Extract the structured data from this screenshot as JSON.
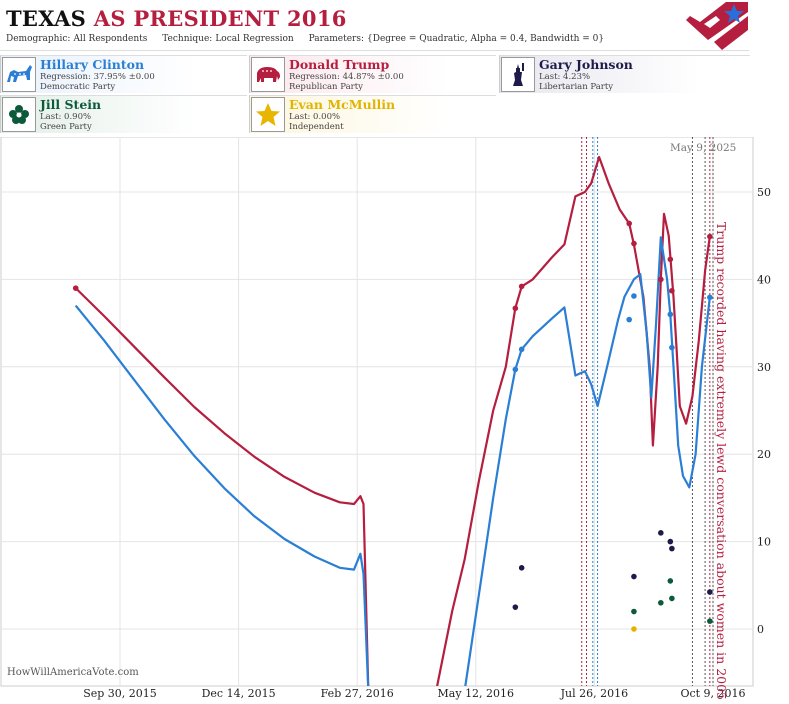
{
  "header": {
    "title_state": "TEXAS",
    "title_rest": "AS PRESIDENT 2016",
    "demographic_label": "Demographic:",
    "demographic_value": "All Respondents",
    "technique_label": "Technique:",
    "technique_value": "Local Regression",
    "parameters_label": "Parameters:",
    "parameters_value": "{Degree = Quadratic, Alpha = 0.4, Bandwidth = 0}"
  },
  "candidates": [
    {
      "name": "Hillary Clinton",
      "stat": "Regression: 37.95% ±0.00",
      "party": "Democratic Party",
      "color": "#2a7fd4",
      "icon": "donkey-icon"
    },
    {
      "name": "Donald Trump",
      "stat": "Regression: 44.87% ±0.00",
      "party": "Republican Party",
      "color": "#b51e3f",
      "icon": "elephant-icon"
    },
    {
      "name": "Gary Johnson",
      "stat": "Last: 4.23%",
      "party": "Libertarian Party",
      "color": "#1e1b4a",
      "icon": "statue-of-liberty-icon"
    },
    {
      "name": "Jill Stein",
      "stat": "Last: 0.90%",
      "party": "Green Party",
      "color": "#0c5a3a",
      "icon": "flower-icon"
    },
    {
      "name": "Evan McMullin",
      "stat": "Last: 0.00%",
      "party": "Independent",
      "color": "#e2b400",
      "icon": "star-icon"
    }
  ],
  "watermark": "HowWillAmericaVote.com",
  "date_stamp": "May 9, 2025",
  "chart_data": {
    "type": "line",
    "x_tick_labels": [
      "Sep 30, 2015",
      "Dec 14, 2015",
      "Feb 27, 2016",
      "May 12, 2016",
      "Jul 26, 2016",
      "Oct 9, 2016"
    ],
    "y_ticks": [
      0,
      10,
      20,
      30,
      40,
      50
    ],
    "ylim": [
      -6.5,
      56
    ],
    "grid": true,
    "annotation": "Trump recorded having extremely lewd conversation about women in 2005",
    "series": [
      {
        "name": "Donald Trump",
        "color": "#b51e3f",
        "curve": [
          [
            "2015-09-02",
            39
          ],
          [
            "2015-09-20",
            35.8
          ],
          [
            "2015-10-09",
            32.3
          ],
          [
            "2015-10-28",
            28.8
          ],
          [
            "2015-11-16",
            25.4
          ],
          [
            "2015-12-05",
            22.4
          ],
          [
            "2015-12-24",
            19.7
          ],
          [
            "2016-01-12",
            17.4
          ],
          [
            "2016-01-31",
            15.6
          ],
          [
            "2016-02-16",
            14.5
          ],
          [
            "2016-02-25",
            14.3
          ],
          [
            "2016-02-29",
            15.2
          ],
          [
            "2016-03-02",
            14.3
          ],
          [
            "2016-03-05",
            -7
          ],
          [
            "2016-04-17",
            -7
          ],
          [
            "2016-04-27",
            2
          ],
          [
            "2016-05-05",
            8
          ],
          [
            "2016-05-14",
            17
          ],
          [
            "2016-05-23",
            25
          ],
          [
            "2016-05-31",
            30
          ],
          [
            "2016-06-06",
            36.7
          ],
          [
            "2016-06-10",
            39.2
          ],
          [
            "2016-06-17",
            40
          ],
          [
            "2016-06-29",
            42.5
          ],
          [
            "2016-07-07",
            44
          ],
          [
            "2016-07-14",
            49.5
          ],
          [
            "2016-07-20",
            50
          ],
          [
            "2016-07-24",
            51
          ],
          [
            "2016-07-29",
            54
          ],
          [
            "2016-08-04",
            51
          ],
          [
            "2016-08-11",
            48
          ],
          [
            "2016-08-17",
            46.4
          ],
          [
            "2016-08-20",
            44
          ],
          [
            "2016-08-26",
            38
          ],
          [
            "2016-08-30",
            30
          ],
          [
            "2016-09-01",
            21
          ],
          [
            "2016-09-04",
            30
          ],
          [
            "2016-09-06",
            40
          ],
          [
            "2016-09-08",
            47.5
          ],
          [
            "2016-09-11",
            45
          ],
          [
            "2016-09-14",
            38
          ],
          [
            "2016-09-16",
            32
          ],
          [
            "2016-09-18",
            25.5
          ],
          [
            "2016-09-22",
            23.5
          ],
          [
            "2016-09-26",
            26.6
          ],
          [
            "2016-09-30",
            33
          ],
          [
            "2016-10-04",
            41
          ],
          [
            "2016-10-07",
            44.9
          ]
        ],
        "points": [
          [
            "2015-09-02",
            39.0
          ],
          [
            "2016-06-06",
            36.7
          ],
          [
            "2016-06-10",
            39.2
          ],
          [
            "2016-08-17",
            46.4
          ],
          [
            "2016-08-20",
            44.1
          ],
          [
            "2016-09-06",
            40.0
          ],
          [
            "2016-09-12",
            42.3
          ],
          [
            "2016-09-13",
            38.7
          ],
          [
            "2016-10-07",
            44.9
          ]
        ]
      },
      {
        "name": "Hillary Clinton",
        "color": "#2a7fd4",
        "curve": [
          [
            "2015-09-02",
            37
          ],
          [
            "2015-09-20",
            33
          ],
          [
            "2015-10-09",
            28.5
          ],
          [
            "2015-10-28",
            24
          ],
          [
            "2015-11-16",
            19.8
          ],
          [
            "2015-12-05",
            16.1
          ],
          [
            "2015-12-24",
            12.9
          ],
          [
            "2016-01-12",
            10.3
          ],
          [
            "2016-01-31",
            8.3
          ],
          [
            "2016-02-16",
            7
          ],
          [
            "2016-02-25",
            6.8
          ],
          [
            "2016-02-29",
            8.6
          ],
          [
            "2016-03-02",
            6.3
          ],
          [
            "2016-03-05",
            -7
          ],
          [
            "2016-05-05",
            -7
          ],
          [
            "2016-05-14",
            4
          ],
          [
            "2016-05-23",
            15
          ],
          [
            "2016-05-31",
            24
          ],
          [
            "2016-06-06",
            29.7
          ],
          [
            "2016-06-10",
            32
          ],
          [
            "2016-06-17",
            33.5
          ],
          [
            "2016-06-29",
            35.5
          ],
          [
            "2016-07-07",
            36.8
          ],
          [
            "2016-07-14",
            29
          ],
          [
            "2016-07-20",
            29.5
          ],
          [
            "2016-07-24",
            28
          ],
          [
            "2016-07-28",
            25.5
          ],
          [
            "2016-08-03",
            30
          ],
          [
            "2016-08-10",
            35.4
          ],
          [
            "2016-08-14",
            38
          ],
          [
            "2016-08-20",
            40
          ],
          [
            "2016-08-24",
            40.6
          ],
          [
            "2016-08-28",
            34
          ],
          [
            "2016-08-31",
            26.5
          ],
          [
            "2016-09-03",
            35
          ],
          [
            "2016-09-06",
            44.8
          ],
          [
            "2016-09-10",
            40
          ],
          [
            "2016-09-12",
            36
          ],
          [
            "2016-09-14",
            30
          ],
          [
            "2016-09-17",
            21
          ],
          [
            "2016-09-20",
            17.5
          ],
          [
            "2016-09-24",
            16.2
          ],
          [
            "2016-09-28",
            20
          ],
          [
            "2016-10-02",
            30
          ],
          [
            "2016-10-07",
            37.95
          ]
        ],
        "points": [
          [
            "2016-06-06",
            29.7
          ],
          [
            "2016-06-10",
            32.0
          ],
          [
            "2016-08-17",
            35.4
          ],
          [
            "2016-08-20",
            38.1
          ],
          [
            "2016-09-12",
            36.0
          ],
          [
            "2016-09-13",
            32.2
          ],
          [
            "2016-10-07",
            37.95
          ]
        ]
      },
      {
        "name": "Gary Johnson",
        "color": "#1e1b4a",
        "points": [
          [
            "2016-06-06",
            2.5
          ],
          [
            "2016-06-10",
            7.0
          ],
          [
            "2016-08-20",
            6.0
          ],
          [
            "2016-09-06",
            11.0
          ],
          [
            "2016-09-12",
            10.0
          ],
          [
            "2016-09-13",
            9.2
          ],
          [
            "2016-10-07",
            4.23
          ]
        ]
      },
      {
        "name": "Jill Stein",
        "color": "#0c5a3a",
        "points": [
          [
            "2016-08-20",
            2.0
          ],
          [
            "2016-09-06",
            3.0
          ],
          [
            "2016-09-12",
            5.5
          ],
          [
            "2016-09-13",
            3.5
          ],
          [
            "2016-10-07",
            0.9
          ]
        ]
      },
      {
        "name": "Evan McMullin",
        "color": "#e2b400",
        "points": [
          [
            "2016-08-20",
            0.0
          ]
        ]
      }
    ],
    "event_lines": [
      {
        "date": "2016-07-18",
        "color": "#b51e3f"
      },
      {
        "date": "2016-07-21",
        "color": "#b51e3f"
      },
      {
        "date": "2016-07-25",
        "color": "#2a7fd4"
      },
      {
        "date": "2016-07-28",
        "color": "#2a7fd4"
      },
      {
        "date": "2016-09-26",
        "color": "#555555"
      },
      {
        "date": "2016-10-04",
        "color": "#555555"
      },
      {
        "date": "2016-10-07",
        "color": "#b51e3f"
      },
      {
        "date": "2016-10-09",
        "color": "#555555"
      }
    ]
  }
}
